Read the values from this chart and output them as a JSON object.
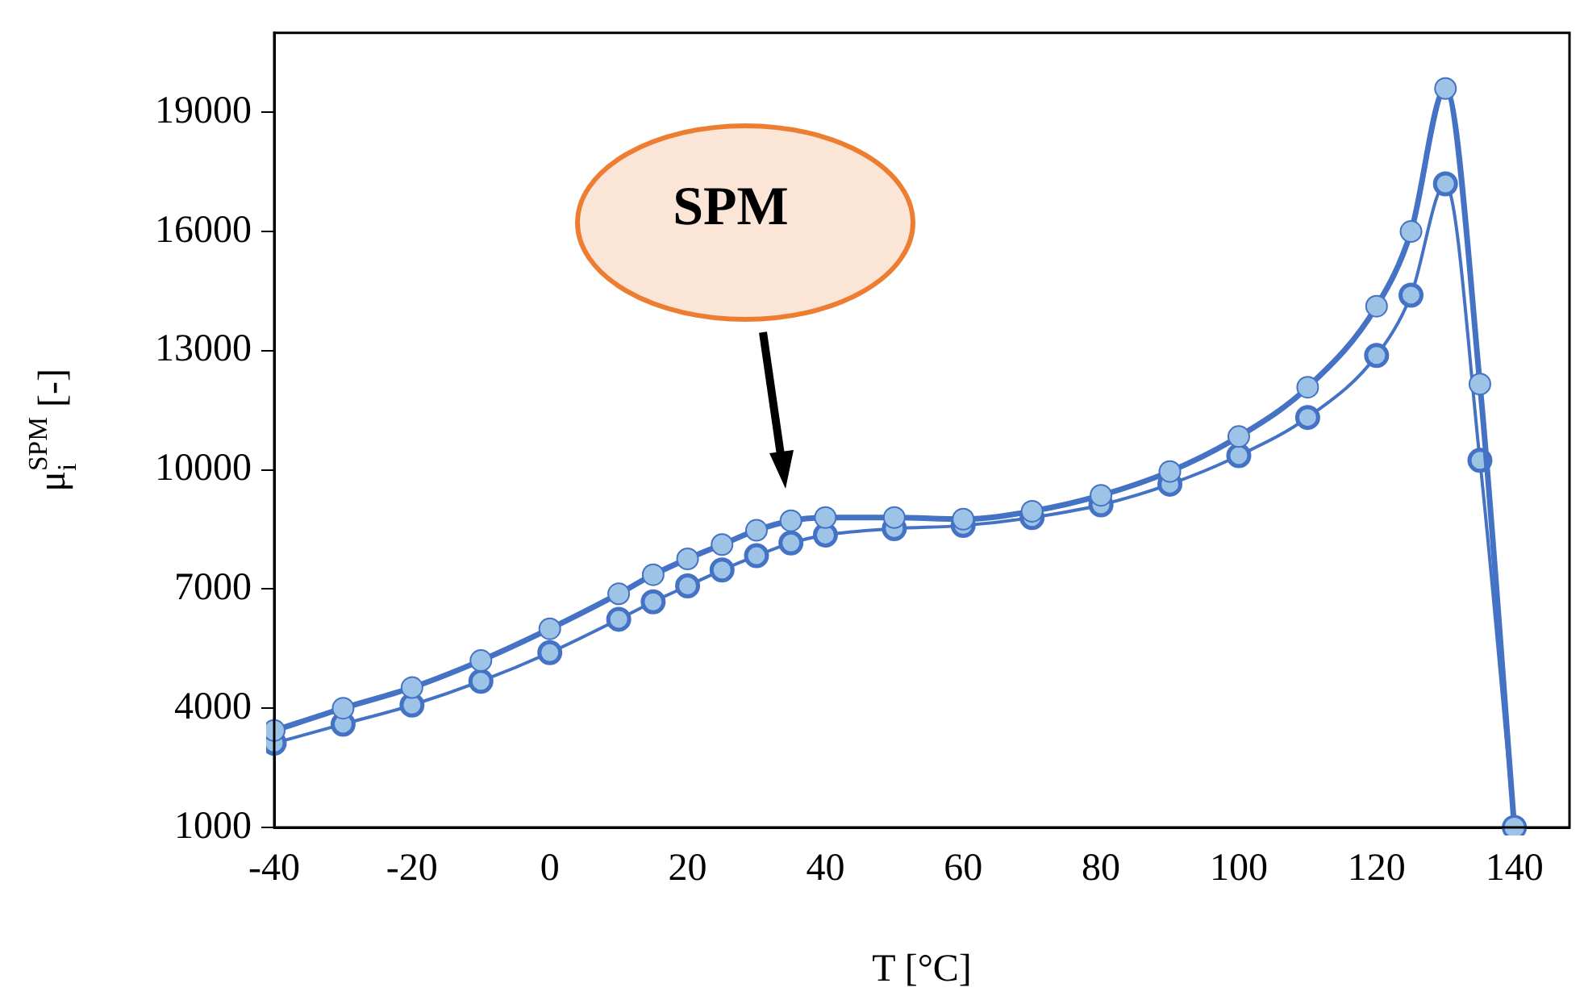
{
  "chart_data": {
    "type": "line",
    "xlabel": "T [°C]",
    "ylabel": "μ$_{i}$$^{SPM}$ [-]",
    "xlim": [
      -40,
      148
    ],
    "xticks": [
      -40,
      -20,
      0,
      20,
      40,
      60,
      80,
      100,
      120,
      140
    ],
    "ylim": [
      1000,
      21000
    ],
    "yticks": [
      1000,
      4000,
      7000,
      10000,
      13000,
      16000,
      19000
    ],
    "grid": false,
    "legend": false,
    "marker": "circle",
    "line_style": "solid",
    "annotations": [
      "SPM"
    ],
    "series": [
      {
        "color": "#4472c4",
        "x": [
          -40,
          -30,
          -20,
          -10,
          0,
          10,
          15,
          20,
          25,
          30,
          35,
          40,
          50,
          60,
          70,
          80,
          90,
          100,
          110,
          120,
          125,
          130,
          135,
          140
        ],
        "values": [
          3440,
          4000,
          4520,
          5200,
          6000,
          6880,
          7360,
          7760,
          8120,
          8480,
          8720,
          8800,
          8800,
          8760,
          8960,
          9360,
          9960,
          10840,
          12080,
          14120,
          16000,
          19600,
          12160,
          1000
        ]
      },
      {
        "color": "#4472c4",
        "x": [
          -40,
          -30,
          -20,
          -10,
          0,
          10,
          15,
          20,
          25,
          30,
          35,
          40,
          50,
          60,
          70,
          80,
          90,
          100,
          110,
          120,
          125,
          130,
          135,
          140
        ],
        "values": [
          3120,
          3600,
          4080,
          4680,
          5400,
          6240,
          6680,
          7080,
          7480,
          7840,
          8160,
          8360,
          8520,
          8600,
          8800,
          9120,
          9640,
          10360,
          11320,
          12880,
          14400,
          17200,
          10240,
          1000
        ]
      }
    ]
  }
}
